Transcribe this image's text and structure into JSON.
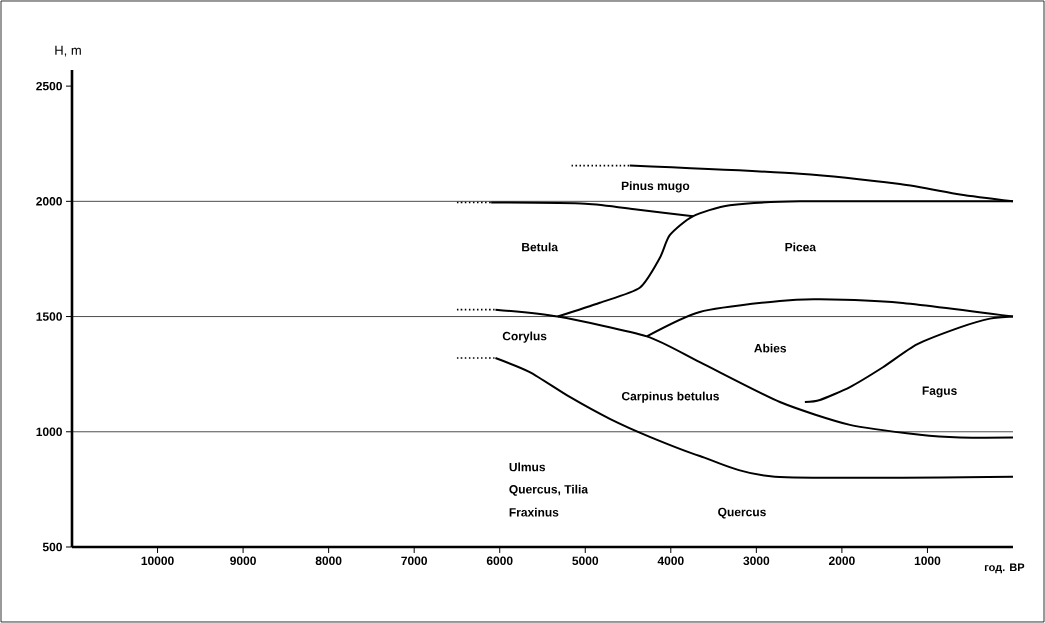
{
  "chart_data": {
    "type": "line",
    "xlabel": "год. BP",
    "ylabel": "H, m",
    "xlim": [
      11000,
      0
    ],
    "ylim": [
      500,
      2570
    ],
    "xticks": [
      10000,
      9000,
      8000,
      7000,
      6000,
      5000,
      4000,
      3000,
      2000,
      1000
    ],
    "yticks": [
      500,
      1000,
      1500,
      2000,
      2500
    ],
    "series": [
      {
        "color": "#000000",
        "line_style": "dotted",
        "x": [
          5160,
          4480
        ],
        "values": [
          2155,
          2155
        ]
      },
      {
        "color": "#000000",
        "line_style": "solid",
        "x": [
          4480,
          2491,
          1322,
          620,
          0
        ],
        "values": [
          2155,
          2120,
          2075,
          2030,
          2000
        ]
      },
      {
        "color": "#000000",
        "line_style": "dotted",
        "x": [
          6500,
          6100
        ],
        "values": [
          1995,
          1995
        ]
      },
      {
        "color": "#000000",
        "line_style": "solid",
        "x": [
          6100,
          5000,
          4400,
          3740
        ],
        "values": [
          1995,
          1990,
          1965,
          1935
        ]
      },
      {
        "color": "#000000",
        "line_style": "solid",
        "x": [
          5322,
          4830,
          4363,
          4129,
          4012,
          3743,
          3310,
          2491,
          0
        ],
        "values": [
          1500,
          1560,
          1625,
          1754,
          1853,
          1935,
          1983,
          2000,
          2000
        ]
      },
      {
        "color": "#000000",
        "line_style": "dotted",
        "x": [
          6500,
          6050
        ],
        "values": [
          1530,
          1530
        ]
      },
      {
        "color": "#000000",
        "line_style": "solid",
        "x": [
          6050,
          5322,
          4281,
          3661,
          2725,
          1906,
          1088,
          620,
          0
        ],
        "values": [
          1530,
          1500,
          1414,
          1302,
          1129,
          1030,
          987,
          975,
          975
        ]
      },
      {
        "color": "#000000",
        "line_style": "solid",
        "x": [
          4281,
          3661,
          2725,
          2257,
          1322,
          0
        ],
        "values": [
          1414,
          1520,
          1568,
          1575,
          1560,
          1500
        ]
      },
      {
        "color": "#000000",
        "line_style": "solid",
        "x": [
          2433,
          2257,
          1906,
          1520,
          1123,
          620,
          269,
          0
        ],
        "values": [
          1129,
          1138,
          1194,
          1280,
          1379,
          1453,
          1491,
          1500
        ]
      },
      {
        "color": "#000000",
        "line_style": "dotted",
        "x": [
          6500,
          6050
        ],
        "values": [
          1320,
          1320
        ]
      },
      {
        "color": "#000000",
        "line_style": "solid",
        "x": [
          6050,
          5649,
          5181,
          4713,
          4246,
          3661,
          2784,
          0
        ],
        "values": [
          1320,
          1259,
          1151,
          1056,
          978,
          895,
          805,
          805
        ]
      }
    ],
    "ref_lines": [
      {
        "axis": "y",
        "value": 2000,
        "color": "#000000"
      },
      {
        "axis": "y",
        "value": 1500,
        "color": "#000000"
      },
      {
        "axis": "y",
        "value": 1000,
        "color": "#000000"
      }
    ],
    "annotations": [
      "Pinus mugo",
      "Betula",
      "Picea",
      "Corylus",
      "Abies",
      "Carpinus betulus",
      "Fagus",
      "Ulmus",
      "Quercus, Tilia",
      "Fraxinus",
      "Quercus"
    ]
  }
}
